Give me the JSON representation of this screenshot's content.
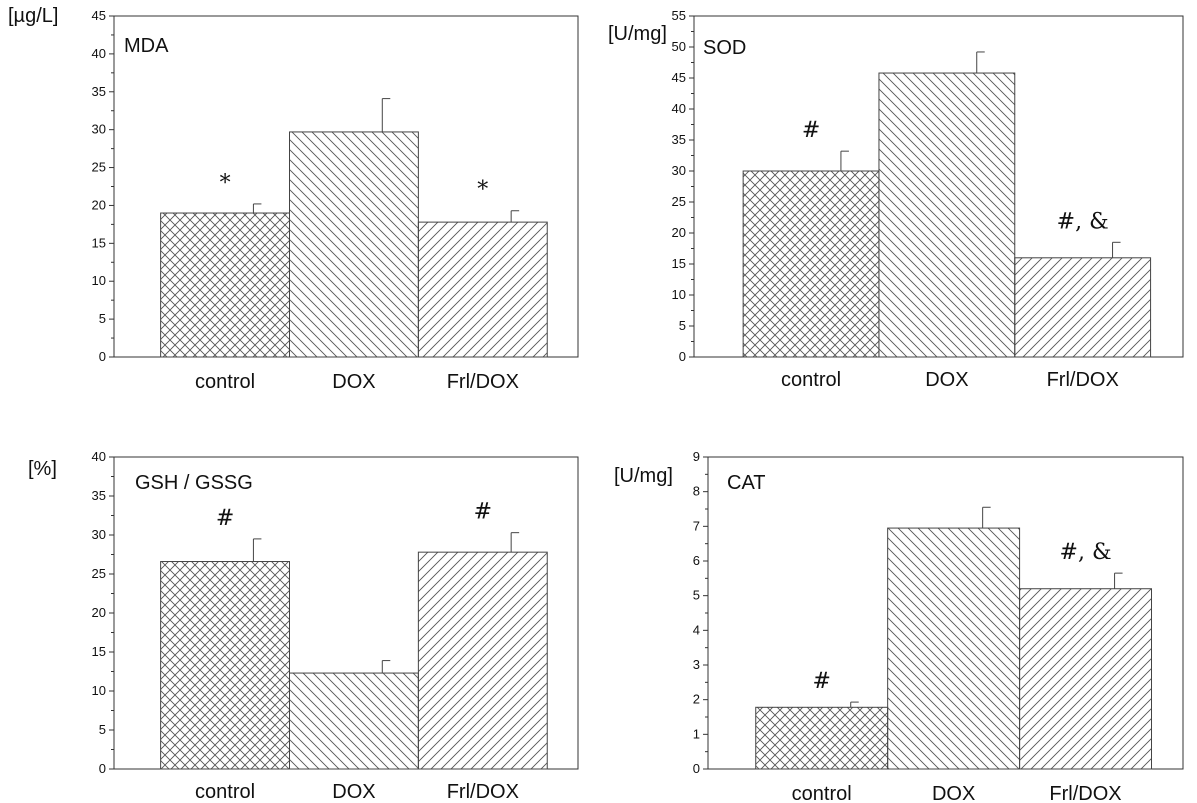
{
  "chart_data": [
    {
      "type": "bar",
      "title": "MDA",
      "ylabel": "[µg/L]",
      "categories": [
        "control",
        "DOX",
        "Frl/DOX"
      ],
      "values": [
        19.0,
        29.7,
        17.8
      ],
      "errors": [
        1.2,
        4.4,
        1.5
      ],
      "annotations": [
        "*",
        "",
        "*"
      ],
      "ylim": [
        0,
        45
      ],
      "yticks": [
        0,
        5,
        10,
        15,
        20,
        25,
        30,
        35,
        40,
        45
      ],
      "patterns": [
        "crosshatch",
        "backslash",
        "slash"
      ]
    },
    {
      "type": "bar",
      "title": "SOD",
      "ylabel": "[U/mg]",
      "categories": [
        "control",
        "DOX",
        "Frl/DOX"
      ],
      "values": [
        30.0,
        45.8,
        16.0
      ],
      "errors": [
        3.2,
        3.4,
        2.5
      ],
      "annotations": [
        "#",
        "",
        "#, &"
      ],
      "ylim": [
        0,
        55
      ],
      "yticks": [
        0,
        5,
        10,
        15,
        20,
        25,
        30,
        35,
        40,
        45,
        50,
        55
      ],
      "patterns": [
        "crosshatch",
        "backslash",
        "slash"
      ]
    },
    {
      "type": "bar",
      "title": "GSH / GSSG",
      "ylabel": "[%]",
      "categories": [
        "control",
        "DOX",
        "Frl/DOX"
      ],
      "values": [
        26.6,
        12.3,
        27.8
      ],
      "errors": [
        2.9,
        1.6,
        2.5
      ],
      "annotations": [
        "#",
        "",
        "#"
      ],
      "ylim": [
        0,
        40
      ],
      "yticks": [
        0,
        5,
        10,
        15,
        20,
        25,
        30,
        35,
        40
      ],
      "patterns": [
        "crosshatch",
        "backslash",
        "slash"
      ]
    },
    {
      "type": "bar",
      "title": "CAT",
      "ylabel": "[U/mg]",
      "categories": [
        "control",
        "DOX",
        "Frl/DOX"
      ],
      "values": [
        1.78,
        6.95,
        5.2
      ],
      "errors": [
        0.15,
        0.6,
        0.45
      ],
      "annotations": [
        "#",
        "",
        "#, &"
      ],
      "ylim": [
        0,
        9
      ],
      "yticks": [
        0,
        1,
        2,
        3,
        4,
        5,
        6,
        7,
        8,
        9
      ],
      "patterns": [
        "crosshatch",
        "backslash",
        "slash"
      ]
    }
  ]
}
